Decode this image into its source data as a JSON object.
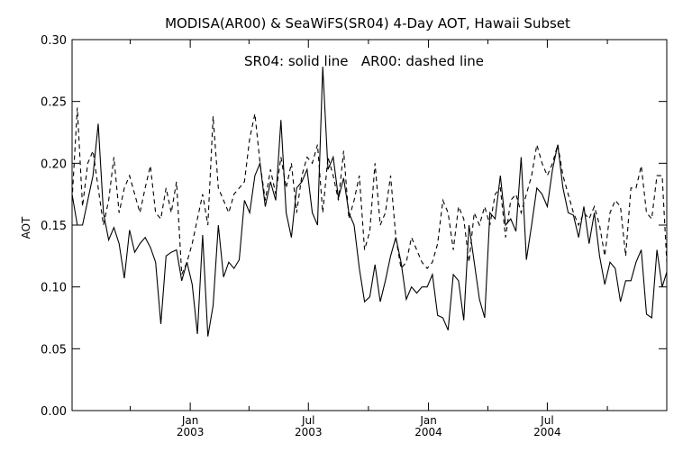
{
  "chart_data": {
    "type": "line",
    "title": "MODISA(AR00) & SeaWiFS(SR04) 4-Day AOT, Hawaii Subset",
    "annotation": "SR04: solid line   AR00: dashed line",
    "ylabel": "AOT",
    "xlabel": "",
    "ylim": [
      0.0,
      0.3
    ],
    "yticks": [
      0.0,
      0.05,
      0.1,
      0.15,
      0.2,
      0.25,
      0.3
    ],
    "ytick_labels": [
      "0.00",
      "0.05",
      "0.10",
      "0.15",
      "0.20",
      "0.25",
      "0.30"
    ],
    "xlim": [
      "2002-07-04",
      "2004-12-31"
    ],
    "xticks_major": [
      {
        "date": "2003-01-01",
        "line1": "Jan",
        "line2": "2003"
      },
      {
        "date": "2003-07-01",
        "line1": "Jul",
        "line2": "2003"
      },
      {
        "date": "2004-01-01",
        "line1": "Jan",
        "line2": "2004"
      },
      {
        "date": "2004-07-01",
        "line1": "Jul",
        "line2": "2004"
      }
    ],
    "xticks_minor": [
      "2002-10-01",
      "2003-04-01",
      "2003-10-01",
      "2004-04-01",
      "2004-10-01"
    ],
    "grid": false,
    "legend": "annotation-top-center",
    "series": [
      {
        "name": "SR04",
        "style": "solid",
        "color": "#000000",
        "x": [
          "2002-07-04",
          "2002-07-12",
          "2002-07-20",
          "2002-07-28",
          "2002-08-05",
          "2002-08-13",
          "2002-08-21",
          "2002-08-29",
          "2002-09-06",
          "2002-09-14",
          "2002-09-22",
          "2002-09-30",
          "2002-10-08",
          "2002-10-16",
          "2002-10-24",
          "2002-11-01",
          "2002-11-09",
          "2002-11-17",
          "2002-11-25",
          "2002-12-03",
          "2002-12-11",
          "2002-12-19",
          "2002-12-27",
          "2003-01-04",
          "2003-01-12",
          "2003-01-20",
          "2003-01-28",
          "2003-02-05",
          "2003-02-13",
          "2003-02-21",
          "2003-03-01",
          "2003-03-09",
          "2003-03-17",
          "2003-03-25",
          "2003-04-02",
          "2003-04-10",
          "2003-04-18",
          "2003-04-26",
          "2003-05-04",
          "2003-05-12",
          "2003-05-20",
          "2003-05-28",
          "2003-06-05",
          "2003-06-13",
          "2003-06-21",
          "2003-06-29",
          "2003-07-07",
          "2003-07-15",
          "2003-07-23",
          "2003-07-31",
          "2003-08-08",
          "2003-08-16",
          "2003-08-24",
          "2003-09-01",
          "2003-09-09",
          "2003-09-17",
          "2003-09-25",
          "2003-10-03",
          "2003-10-11",
          "2003-10-19",
          "2003-10-27",
          "2003-11-04",
          "2003-11-12",
          "2003-11-20",
          "2003-11-28",
          "2003-12-06",
          "2003-12-14",
          "2003-12-22",
          "2003-12-30",
          "2004-01-07",
          "2004-01-15",
          "2004-01-23",
          "2004-01-31",
          "2004-02-08",
          "2004-02-16",
          "2004-02-24",
          "2004-03-03",
          "2004-03-11",
          "2004-03-19",
          "2004-03-27",
          "2004-04-04",
          "2004-04-12",
          "2004-04-20",
          "2004-04-28",
          "2004-05-06",
          "2004-05-14",
          "2004-05-22",
          "2004-05-30",
          "2004-06-07",
          "2004-06-15",
          "2004-06-23",
          "2004-07-01",
          "2004-07-09",
          "2004-07-17",
          "2004-07-25",
          "2004-08-02",
          "2004-08-10",
          "2004-08-18",
          "2004-08-26",
          "2004-09-03",
          "2004-09-11",
          "2004-09-19",
          "2004-09-27",
          "2004-10-05",
          "2004-10-13",
          "2004-10-21",
          "2004-10-29",
          "2004-11-06",
          "2004-11-14",
          "2004-11-22",
          "2004-11-30",
          "2004-12-08",
          "2004-12-16",
          "2004-12-24",
          "2004-12-31"
        ],
        "y": [
          0.175,
          0.15,
          0.15,
          0.17,
          0.19,
          0.232,
          0.16,
          0.138,
          0.148,
          0.135,
          0.107,
          0.146,
          0.128,
          0.135,
          0.14,
          0.132,
          0.12,
          0.07,
          0.125,
          0.128,
          0.13,
          0.105,
          0.12,
          0.102,
          0.062,
          0.142,
          0.06,
          0.085,
          0.15,
          0.108,
          0.12,
          0.115,
          0.122,
          0.17,
          0.16,
          0.19,
          0.2,
          0.165,
          0.185,
          0.17,
          0.235,
          0.16,
          0.14,
          0.18,
          0.185,
          0.195,
          0.16,
          0.15,
          0.278,
          0.195,
          0.205,
          0.172,
          0.188,
          0.16,
          0.15,
          0.115,
          0.088,
          0.092,
          0.118,
          0.088,
          0.105,
          0.125,
          0.14,
          0.12,
          0.09,
          0.1,
          0.095,
          0.1,
          0.1,
          0.11,
          0.077,
          0.075,
          0.065,
          0.11,
          0.105,
          0.073,
          0.15,
          0.12,
          0.09,
          0.075,
          0.16,
          0.155,
          0.19,
          0.15,
          0.155,
          0.145,
          0.205,
          0.122,
          0.15,
          0.18,
          0.175,
          0.165,
          0.195,
          0.215,
          0.18,
          0.16,
          0.158,
          0.14,
          0.165,
          0.135,
          0.16,
          0.125,
          0.102,
          0.12,
          0.115,
          0.088,
          0.105,
          0.105,
          0.12,
          0.13,
          0.078,
          0.075,
          0.13,
          0.1,
          0.112
        ]
      },
      {
        "name": "AR00",
        "style": "dashed",
        "color": "#000000",
        "x": [
          "2002-07-04",
          "2002-07-12",
          "2002-07-20",
          "2002-07-28",
          "2002-08-05",
          "2002-08-13",
          "2002-08-21",
          "2002-08-29",
          "2002-09-06",
          "2002-09-14",
          "2002-09-22",
          "2002-09-30",
          "2002-10-08",
          "2002-10-16",
          "2002-10-24",
          "2002-11-01",
          "2002-11-09",
          "2002-11-17",
          "2002-11-25",
          "2002-12-03",
          "2002-12-11",
          "2002-12-19",
          "2002-12-27",
          "2003-01-04",
          "2003-01-12",
          "2003-01-20",
          "2003-01-28",
          "2003-02-05",
          "2003-02-13",
          "2003-02-21",
          "2003-03-01",
          "2003-03-09",
          "2003-03-17",
          "2003-03-25",
          "2003-04-02",
          "2003-04-10",
          "2003-04-18",
          "2003-04-26",
          "2003-05-04",
          "2003-05-12",
          "2003-05-20",
          "2003-05-28",
          "2003-06-05",
          "2003-06-13",
          "2003-06-21",
          "2003-06-29",
          "2003-07-07",
          "2003-07-15",
          "2003-07-23",
          "2003-07-31",
          "2003-08-08",
          "2003-08-16",
          "2003-08-24",
          "2003-09-01",
          "2003-09-09",
          "2003-09-17",
          "2003-09-25",
          "2003-10-03",
          "2003-10-11",
          "2003-10-19",
          "2003-10-27",
          "2003-11-04",
          "2003-11-12",
          "2003-11-20",
          "2003-11-28",
          "2003-12-06",
          "2003-12-14",
          "2003-12-22",
          "2003-12-30",
          "2004-01-07",
          "2004-01-15",
          "2004-01-23",
          "2004-01-31",
          "2004-02-08",
          "2004-02-16",
          "2004-02-24",
          "2004-03-03",
          "2004-03-11",
          "2004-03-19",
          "2004-03-27",
          "2004-04-04",
          "2004-04-12",
          "2004-04-20",
          "2004-04-28",
          "2004-05-06",
          "2004-05-14",
          "2004-05-22",
          "2004-05-30",
          "2004-06-07",
          "2004-06-15",
          "2004-06-23",
          "2004-07-01",
          "2004-07-09",
          "2004-07-17",
          "2004-07-25",
          "2004-08-02",
          "2004-08-10",
          "2004-08-18",
          "2004-08-26",
          "2004-09-03",
          "2004-09-11",
          "2004-09-19",
          "2004-09-27",
          "2004-10-05",
          "2004-10-13",
          "2004-10-21",
          "2004-10-29",
          "2004-11-06",
          "2004-11-14",
          "2004-11-22",
          "2004-11-30",
          "2004-12-08",
          "2004-12-16",
          "2004-12-24",
          "2004-12-31"
        ],
        "y": [
          0.17,
          0.245,
          0.165,
          0.2,
          0.21,
          0.18,
          0.15,
          0.17,
          0.205,
          0.16,
          0.18,
          0.19,
          0.175,
          0.16,
          0.18,
          0.198,
          0.16,
          0.155,
          0.18,
          0.16,
          0.185,
          0.11,
          0.12,
          0.135,
          0.155,
          0.175,
          0.15,
          0.238,
          0.18,
          0.17,
          0.16,
          0.175,
          0.18,
          0.185,
          0.22,
          0.24,
          0.2,
          0.17,
          0.195,
          0.175,
          0.205,
          0.18,
          0.2,
          0.16,
          0.19,
          0.205,
          0.2,
          0.215,
          0.16,
          0.205,
          0.19,
          0.17,
          0.21,
          0.155,
          0.17,
          0.19,
          0.13,
          0.145,
          0.2,
          0.15,
          0.16,
          0.19,
          0.14,
          0.115,
          0.12,
          0.14,
          0.13,
          0.12,
          0.115,
          0.12,
          0.135,
          0.17,
          0.16,
          0.13,
          0.165,
          0.155,
          0.12,
          0.16,
          0.15,
          0.165,
          0.15,
          0.175,
          0.18,
          0.14,
          0.17,
          0.175,
          0.16,
          0.175,
          0.19,
          0.215,
          0.2,
          0.19,
          0.2,
          0.215,
          0.19,
          0.175,
          0.16,
          0.15,
          0.16,
          0.155,
          0.165,
          0.15,
          0.125,
          0.16,
          0.17,
          0.165,
          0.125,
          0.18,
          0.18,
          0.198,
          0.16,
          0.155,
          0.19,
          0.19,
          0.12
        ]
      }
    ]
  }
}
